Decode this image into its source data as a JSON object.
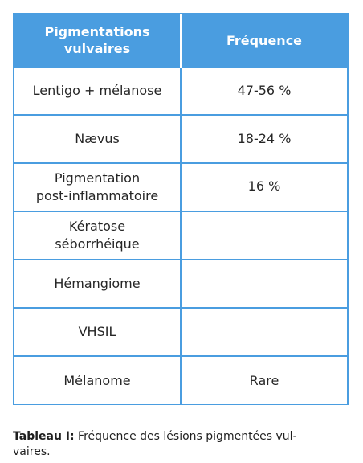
{
  "table": {
    "header": {
      "col1_line1": "Pigmentations",
      "col1_line2": "vulvaires",
      "col2": "Fréquence"
    },
    "rows": [
      {
        "lesion_line1": "Lentigo + mélanose",
        "lesion_line2": "",
        "frequency": "47-56 %"
      },
      {
        "lesion_line1": "Nævus",
        "lesion_line2": "",
        "frequency": "18-24 %"
      },
      {
        "lesion_line1": "Pigmentation",
        "lesion_line2": "post-inflammatoire",
        "frequency": "16 %"
      },
      {
        "lesion_line1": "Kératose",
        "lesion_line2": "séborrhéique",
        "frequency": ""
      },
      {
        "lesion_line1": "Hémangiome",
        "lesion_line2": "",
        "frequency": ""
      },
      {
        "lesion_line1": "VHSIL",
        "lesion_line2": "",
        "frequency": ""
      },
      {
        "lesion_line1": "Mélanome",
        "lesion_line2": "",
        "frequency": "Rare"
      }
    ]
  },
  "caption": {
    "label": "Tableau I:",
    "text_line1": " Fréquence des lésions pigmentées vul-",
    "text_line2": "vaires."
  },
  "colors": {
    "accent": "#4a9de0",
    "header_text": "#ffffff"
  }
}
